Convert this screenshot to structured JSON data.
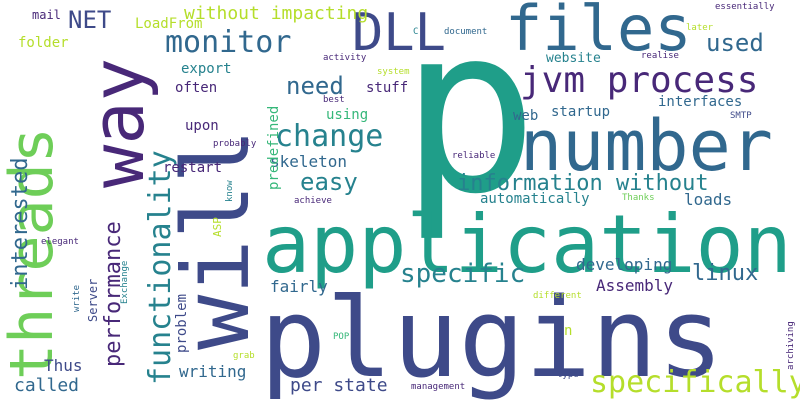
{
  "word_cloud": {
    "background": "#ffffff",
    "palette": [
      "#440154",
      "#482878",
      "#3e4a89",
      "#31688e",
      "#26828e",
      "#1f9e89",
      "#35b779",
      "#6ece58",
      "#b5de2b",
      "#fde725"
    ],
    "words": [
      {
        "text": "p",
        "color": "#1f9e89"
      },
      {
        "text": "plugins",
        "color": "#3e4a89"
      },
      {
        "text": "application",
        "color": "#1f9e89"
      },
      {
        "text": "number",
        "color": "#31688e"
      },
      {
        "text": "will",
        "color": "#3e4a89"
      },
      {
        "text": "way",
        "color": "#482878"
      },
      {
        "text": "threads",
        "color": "#6ece58"
      },
      {
        "text": "files",
        "color": "#31688e"
      },
      {
        "text": "DLL",
        "color": "#3e4a89"
      },
      {
        "text": "jvm process",
        "color": "#482878"
      },
      {
        "text": "functionality",
        "color": "#26828e"
      },
      {
        "text": "specifically",
        "color": "#b5de2b"
      },
      {
        "text": "change",
        "color": "#26828e"
      },
      {
        "text": "monitor",
        "color": "#31688e"
      },
      {
        "text": "specific",
        "color": "#26828e"
      },
      {
        "text": "information without",
        "color": "#26828e"
      },
      {
        "text": "performance",
        "color": "#482878"
      },
      {
        "text": "interested",
        "color": "#31688e"
      },
      {
        "text": "easy",
        "color": "#26828e"
      },
      {
        "text": "need",
        "color": "#31688e"
      },
      {
        "text": "used",
        "color": "#31688e"
      },
      {
        "text": "linux",
        "color": "#31688e"
      },
      {
        "text": "without impacting",
        "color": "#b5de2b"
      },
      {
        "text": "NET",
        "color": "#3e4a89"
      },
      {
        "text": "Thus",
        "color": "#3e4a89"
      },
      {
        "text": "called",
        "color": "#31688e"
      },
      {
        "text": "per state",
        "color": "#3e4a89"
      },
      {
        "text": "writing",
        "color": "#31688e"
      },
      {
        "text": "problem",
        "color": "#3e4a89"
      },
      {
        "text": "fairly",
        "color": "#31688e"
      },
      {
        "text": "Assembly",
        "color": "#482878"
      },
      {
        "text": "developing",
        "color": "#31688e"
      },
      {
        "text": "loads",
        "color": "#31688e"
      },
      {
        "text": "automatically",
        "color": "#26828e"
      },
      {
        "text": "interfaces",
        "color": "#31688e"
      },
      {
        "text": "startup",
        "color": "#31688e"
      },
      {
        "text": "web",
        "color": "#31688e"
      },
      {
        "text": "skeleton",
        "color": "#31688e"
      },
      {
        "text": "predefined",
        "color": "#35b779"
      },
      {
        "text": "restart",
        "color": "#482878"
      },
      {
        "text": "upon",
        "color": "#482878"
      },
      {
        "text": "often",
        "color": "#482878"
      },
      {
        "text": "export",
        "color": "#26828e"
      },
      {
        "text": "stuff",
        "color": "#482878"
      },
      {
        "text": "using",
        "color": "#35b779"
      },
      {
        "text": "website",
        "color": "#26828e"
      },
      {
        "text": "LoadFrom",
        "color": "#b5de2b"
      },
      {
        "text": "mail",
        "color": "#482878"
      },
      {
        "text": "folder",
        "color": "#b5de2b"
      },
      {
        "text": "Server",
        "color": "#3e4a89"
      },
      {
        "text": "ASP",
        "color": "#b5de2b"
      },
      {
        "text": "n",
        "color": "#b5de2b"
      },
      {
        "text": "Exchange",
        "color": "#26828e"
      },
      {
        "text": "write",
        "color": "#31688e"
      },
      {
        "text": "elegant",
        "color": "#482878"
      },
      {
        "text": "know",
        "color": "#26828e"
      },
      {
        "text": "achieve",
        "color": "#482878"
      },
      {
        "text": "Thanks",
        "color": "#6ece58"
      },
      {
        "text": "reliable",
        "color": "#482878"
      },
      {
        "text": "SMTP",
        "color": "#3e4a89"
      },
      {
        "text": "probably",
        "color": "#482878"
      },
      {
        "text": "best",
        "color": "#482878"
      },
      {
        "text": "system",
        "color": "#b5de2b"
      },
      {
        "text": "activity",
        "color": "#482878"
      },
      {
        "text": "C",
        "color": "#26828e"
      },
      {
        "text": "document",
        "color": "#31688e"
      },
      {
        "text": "realise",
        "color": "#482878"
      },
      {
        "text": "later",
        "color": "#b5de2b"
      },
      {
        "text": "essentially",
        "color": "#482878"
      },
      {
        "text": "POP",
        "color": "#35b779"
      },
      {
        "text": "grab",
        "color": "#b5de2b"
      },
      {
        "text": "management",
        "color": "#482878"
      },
      {
        "text": "type",
        "color": "#3e4a89"
      },
      {
        "text": "different",
        "color": "#b5de2b"
      },
      {
        "text": "archiving",
        "color": "#482878"
      }
    ]
  }
}
